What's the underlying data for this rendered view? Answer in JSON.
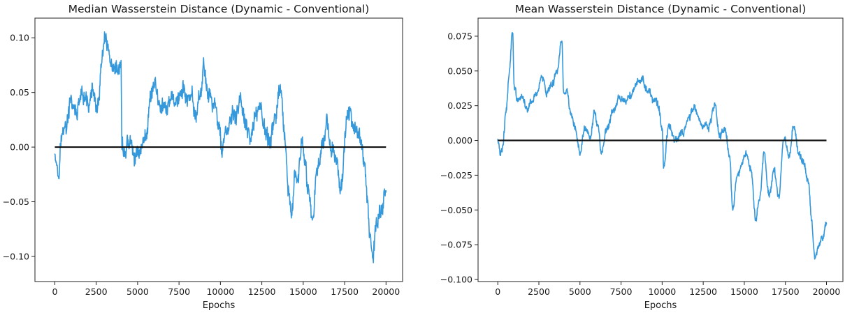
{
  "chart_data": [
    {
      "type": "line",
      "title": "Median Wasserstein Distance (Dynamic - Conventional)",
      "xlabel": "Epochs",
      "ylabel": "",
      "xlim": [
        -1200,
        21000
      ],
      "ylim": [
        -0.123,
        0.118
      ],
      "xticks": [
        0,
        2500,
        5000,
        7500,
        10000,
        12500,
        15000,
        17500,
        20000
      ],
      "xtick_labels": [
        "0",
        "2500",
        "5000",
        "7500",
        "10000",
        "12500",
        "15000",
        "17500",
        "20000"
      ],
      "yticks": [
        -0.1,
        -0.05,
        0.0,
        0.05,
        0.1
      ],
      "ytick_labels": [
        "−0.10",
        "−0.05",
        "0.00",
        "0.05",
        "0.10"
      ],
      "grid": false,
      "series_color": "#3498db",
      "baseline_color": "#111111",
      "baseline": {
        "y": 0,
        "x": [
          0,
          20000
        ]
      },
      "noise_amplitude": 0.009,
      "x": [
        0,
        200,
        400,
        700,
        1000,
        1300,
        1600,
        2000,
        2300,
        2600,
        2800,
        3000,
        3200,
        3500,
        3800,
        4000,
        4050,
        4200,
        4500,
        4800,
        5200,
        5500,
        5800,
        6000,
        6300,
        6600,
        7000,
        7400,
        7800,
        8200,
        8500,
        8800,
        9000,
        9300,
        9600,
        9900,
        10100,
        10300,
        10600,
        10900,
        11200,
        11500,
        11800,
        12100,
        12400,
        12700,
        13000,
        13300,
        13600,
        13900,
        14100,
        14300,
        14500,
        14700,
        14900,
        15100,
        15300,
        15600,
        15800,
        16100,
        16400,
        16700,
        17000,
        17300,
        17600,
        17900,
        18200,
        18500,
        18700,
        18900,
        19100,
        19200,
        19400,
        19600,
        19800,
        20000
      ],
      "y": [
        0.0,
        -0.02,
        0.01,
        0.02,
        0.04,
        0.03,
        0.04,
        0.04,
        0.05,
        0.03,
        0.07,
        0.095,
        0.085,
        0.06,
        0.065,
        0.075,
        0.0,
        -0.005,
        0.005,
        -0.01,
        0.0,
        0.01,
        0.05,
        0.06,
        0.04,
        0.03,
        0.04,
        0.045,
        0.05,
        0.04,
        0.03,
        0.05,
        0.07,
        0.05,
        0.04,
        0.02,
        0.0,
        0.01,
        0.02,
        0.03,
        0.04,
        0.02,
        0.0,
        0.03,
        0.04,
        0.015,
        0.0,
        0.03,
        0.05,
        0.0,
        -0.05,
        -0.065,
        -0.02,
        -0.03,
        0.0,
        -0.02,
        -0.04,
        -0.065,
        -0.02,
        0.0,
        0.025,
        0.0,
        -0.02,
        -0.03,
        0.02,
        0.03,
        0.02,
        0.0,
        -0.02,
        -0.06,
        -0.09,
        -0.1,
        -0.07,
        -0.06,
        -0.05,
        -0.04
      ]
    },
    {
      "type": "line",
      "title": "Mean Wasserstein Distance (Dynamic - Conventional)",
      "xlabel": "Epochs",
      "ylabel": "",
      "xlim": [
        -1200,
        21000
      ],
      "ylim": [
        -0.1015,
        0.088
      ],
      "xticks": [
        0,
        2500,
        5000,
        7500,
        10000,
        12500,
        15000,
        17500,
        20000
      ],
      "xtick_labels": [
        "0",
        "2500",
        "5000",
        "7500",
        "10000",
        "12500",
        "15000",
        "17500",
        "20000"
      ],
      "yticks": [
        -0.1,
        -0.075,
        -0.05,
        -0.025,
        0.0,
        0.025,
        0.05,
        0.075
      ],
      "ytick_labels": [
        "−0.100",
        "−0.075",
        "−0.050",
        "−0.025",
        "0.000",
        "0.025",
        "0.050",
        "0.075"
      ],
      "grid": false,
      "series_color": "#3498db",
      "baseline_color": "#111111",
      "baseline": {
        "y": 0,
        "x": [
          0,
          20000
        ]
      },
      "noise_amplitude": 0.003,
      "x": [
        0,
        150,
        300,
        500,
        700,
        900,
        1000,
        1200,
        1500,
        1800,
        2100,
        2400,
        2700,
        3000,
        3300,
        3600,
        3900,
        4000,
        4200,
        4400,
        4700,
        5000,
        5300,
        5600,
        5900,
        6100,
        6300,
        6600,
        7000,
        7400,
        7800,
        8200,
        8600,
        8800,
        9100,
        9500,
        9800,
        10000,
        10100,
        10400,
        10800,
        11200,
        11600,
        12000,
        12400,
        12800,
        13200,
        13500,
        13800,
        14100,
        14300,
        14500,
        14800,
        15100,
        15400,
        15700,
        15900,
        16200,
        16500,
        16800,
        17100,
        17400,
        17700,
        18000,
        18300,
        18600,
        18900,
        19100,
        19300,
        19500,
        19700,
        20000
      ],
      "y": [
        0.0,
        -0.01,
        -0.005,
        0.02,
        0.05,
        0.078,
        0.04,
        0.028,
        0.03,
        0.022,
        0.03,
        0.035,
        0.045,
        0.035,
        0.04,
        0.05,
        0.072,
        0.035,
        0.035,
        0.02,
        0.01,
        -0.008,
        0.01,
        0.0,
        0.02,
        0.01,
        -0.01,
        0.005,
        0.02,
        0.03,
        0.03,
        0.035,
        0.04,
        0.045,
        0.035,
        0.03,
        0.025,
        0.01,
        -0.02,
        0.01,
        0.0,
        0.005,
        0.015,
        0.025,
        0.01,
        0.01,
        0.025,
        0.005,
        0.01,
        -0.01,
        -0.05,
        -0.03,
        -0.02,
        -0.01,
        -0.02,
        -0.055,
        -0.045,
        -0.01,
        -0.04,
        -0.02,
        -0.04,
        0.0,
        -0.01,
        0.01,
        -0.01,
        -0.015,
        -0.03,
        -0.06,
        -0.085,
        -0.075,
        -0.07,
        -0.06
      ]
    }
  ]
}
